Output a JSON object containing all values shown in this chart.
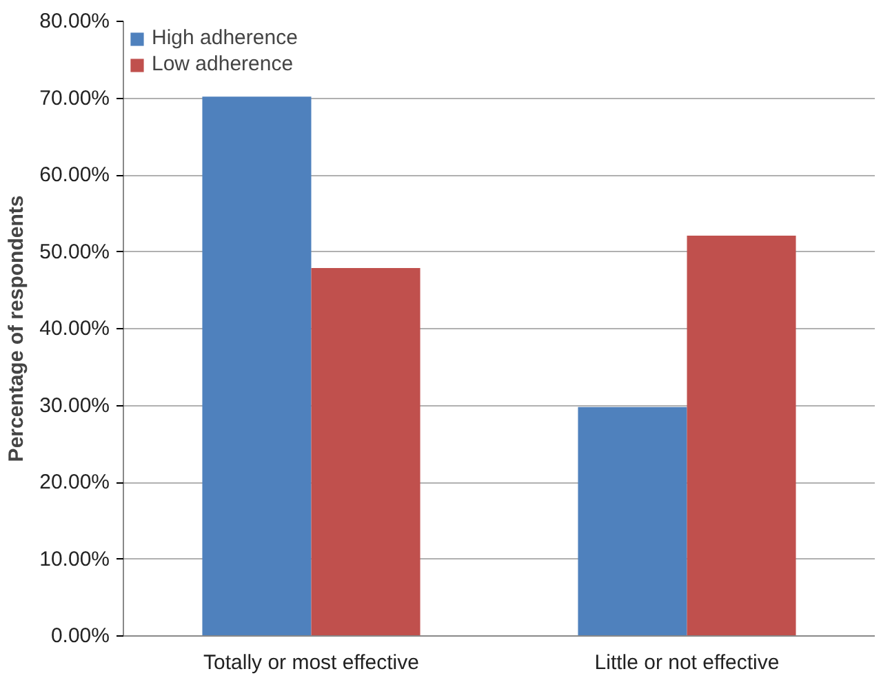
{
  "chart_data": {
    "type": "bar",
    "ylabel": "Percentage of respondents",
    "categories": [
      "Totally or most effective",
      "Little or not effective"
    ],
    "series": [
      {
        "name": "High adherence",
        "color": "#4f81bd",
        "values": [
          70.2,
          29.8
        ]
      },
      {
        "name": "Low adherence",
        "color": "#c0504d",
        "values": [
          47.9,
          52.1
        ]
      }
    ],
    "ylim": [
      0,
      80
    ],
    "yticks": [
      {
        "value": 0,
        "label": "0.00%"
      },
      {
        "value": 10,
        "label": "10.00%"
      },
      {
        "value": 20,
        "label": "20.00%"
      },
      {
        "value": 30,
        "label": "30.00%"
      },
      {
        "value": 40,
        "label": "40.00%"
      },
      {
        "value": 50,
        "label": "50.00%"
      },
      {
        "value": 60,
        "label": "60.00%"
      },
      {
        "value": 70,
        "label": "70.00%"
      },
      {
        "value": 80,
        "label": "80.00%"
      }
    ],
    "grid": "y",
    "legend": "top left"
  }
}
